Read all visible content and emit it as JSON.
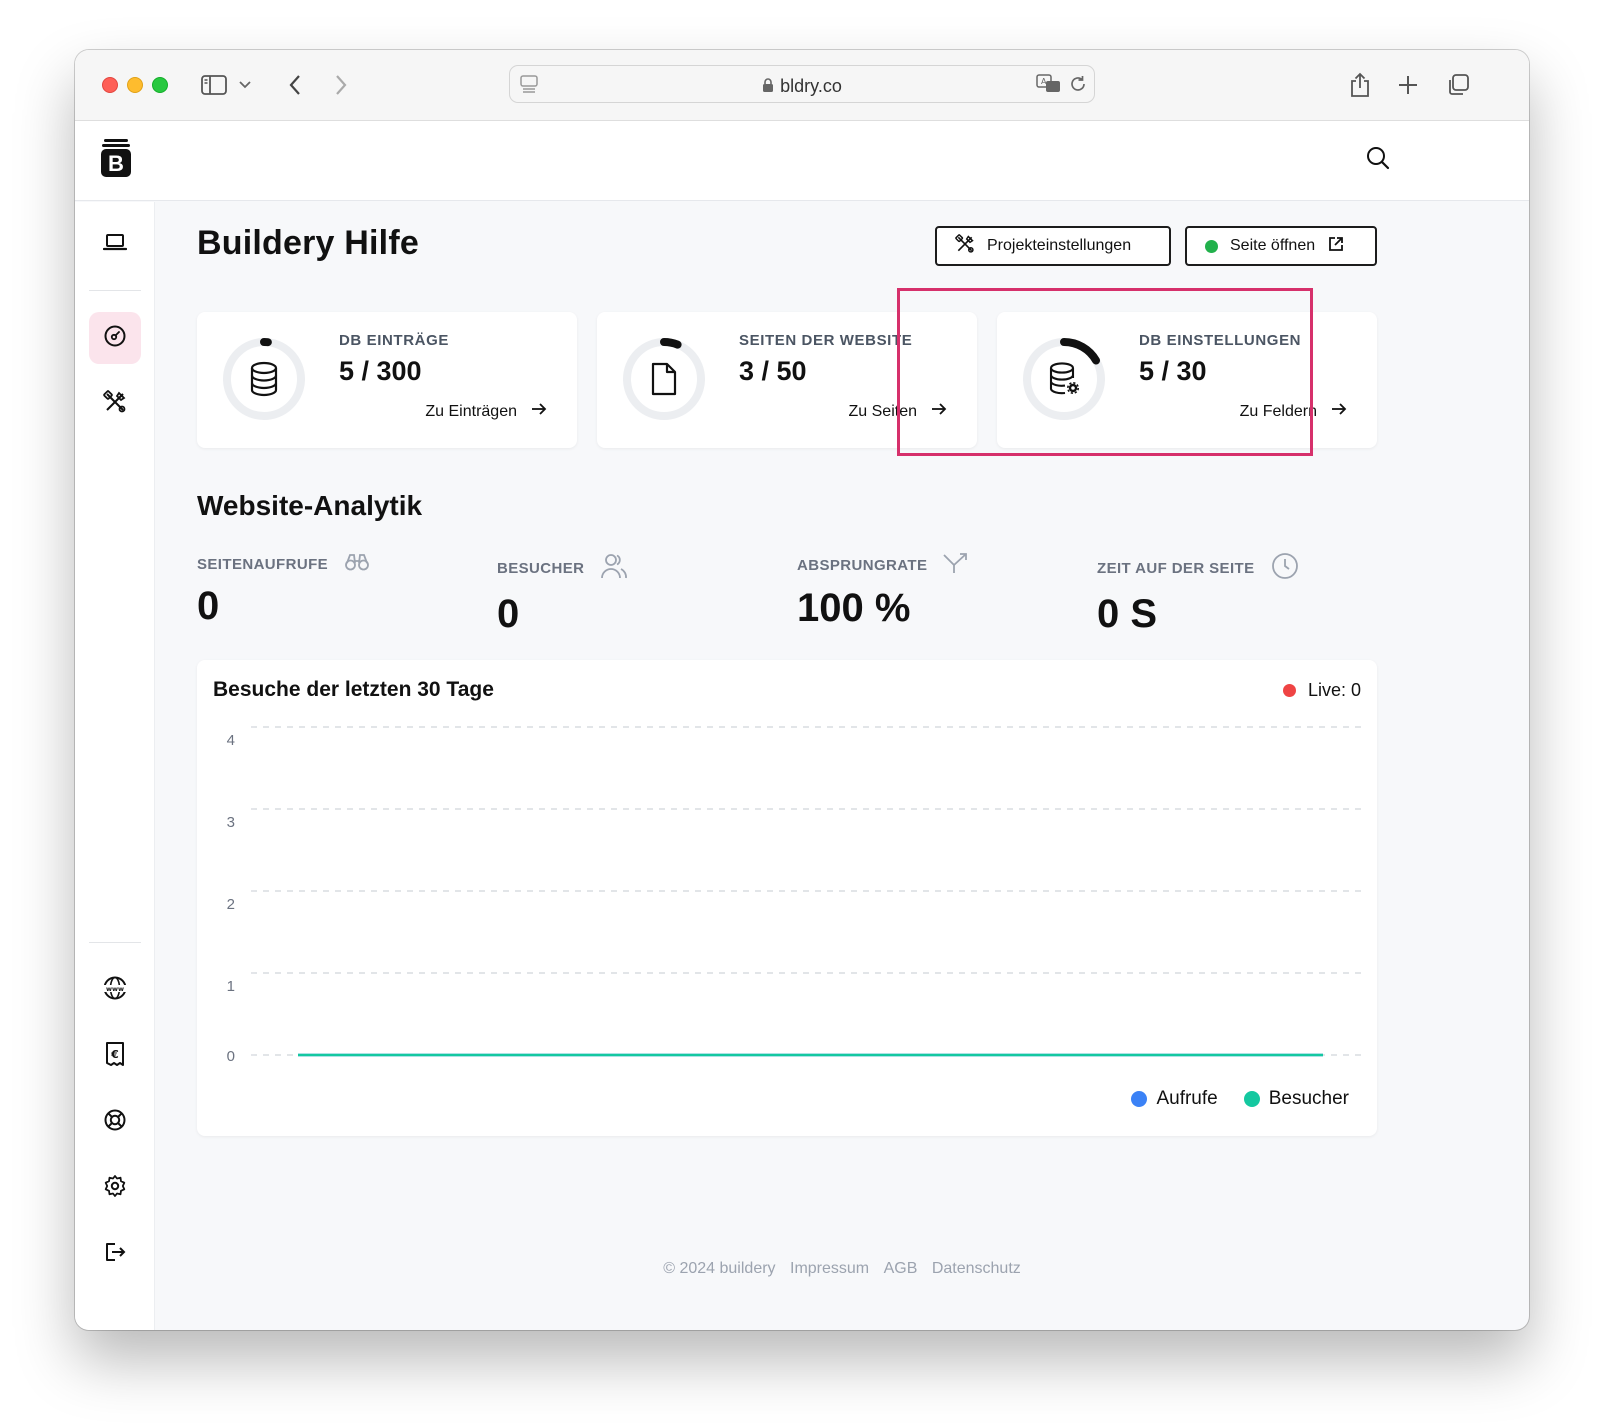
{
  "browser": {
    "url": "bldry.co"
  },
  "header": {
    "logo_letter": "B",
    "search_icon": "search-icon"
  },
  "sidebar": {
    "top_items": [
      {
        "icon": "laptop-icon"
      },
      {
        "icon": "dashboard-gauge-icon",
        "active": true
      },
      {
        "icon": "tools-icon"
      }
    ],
    "bottom_items": [
      {
        "icon": "globe-www-icon"
      },
      {
        "icon": "euro-receipt-icon"
      },
      {
        "icon": "lifebuoy-icon"
      },
      {
        "icon": "gear-icon"
      },
      {
        "icon": "logout-icon"
      }
    ]
  },
  "page": {
    "title": "Buildery Hilfe",
    "project_settings_label": "Projekteinstellungen",
    "open_site_label": "Seite öffnen"
  },
  "cards": [
    {
      "label": "DB Einträge",
      "count": "5 / 300",
      "used": 5,
      "max": 300,
      "link": "Zu Einträgen",
      "icon": "database-icon"
    },
    {
      "label": "Seiten der Website",
      "count": "3 / 50",
      "used": 3,
      "max": 50,
      "link": "Zu Seiten",
      "icon": "file-icon"
    },
    {
      "label": "DB Einstellungen",
      "count": "5 / 30",
      "used": 5,
      "max": 30,
      "link": "Zu Feldern",
      "icon": "database-settings-icon"
    }
  ],
  "analytics": {
    "title": "Website-Analytik",
    "metrics": [
      {
        "label": "SEITENAUFRUFE",
        "value": "0",
        "icon": "binoculars-icon"
      },
      {
        "label": "BESUCHER",
        "value": "0",
        "icon": "users-icon"
      },
      {
        "label": "ABSPRUNGRATE",
        "value": "100 %",
        "icon": "bounce-arrow-icon"
      },
      {
        "label": "ZEIT AUF DER SEITE",
        "value": "0 S",
        "icon": "clock-icon"
      }
    ]
  },
  "chart": {
    "live_label": "Live: 0"
  },
  "chart_data": {
    "type": "line",
    "title": "Besuche der letzten 30 Tage",
    "xlabel": "",
    "ylabel": "",
    "ylim": [
      0,
      4
    ],
    "yticks": [
      0,
      1,
      2,
      3,
      4
    ],
    "grid": true,
    "legend_position": "bottom-right",
    "series": [
      {
        "name": "Aufrufe",
        "color": "#3b82f6",
        "values": [
          0,
          0,
          0,
          0,
          0,
          0,
          0,
          0,
          0,
          0,
          0,
          0,
          0,
          0,
          0,
          0,
          0,
          0,
          0,
          0,
          0,
          0,
          0,
          0,
          0,
          0,
          0,
          0,
          0,
          0
        ]
      },
      {
        "name": "Besucher",
        "color": "#14c8a0",
        "values": [
          0,
          0,
          0,
          0,
          0,
          0,
          0,
          0,
          0,
          0,
          0,
          0,
          0,
          0,
          0,
          0,
          0,
          0,
          0,
          0,
          0,
          0,
          0,
          0,
          0,
          0,
          0,
          0,
          0,
          0
        ]
      }
    ]
  },
  "footer": {
    "copyright": "© 2024 buildery",
    "links": [
      "Impressum",
      "AGB",
      "Datenschutz"
    ]
  }
}
